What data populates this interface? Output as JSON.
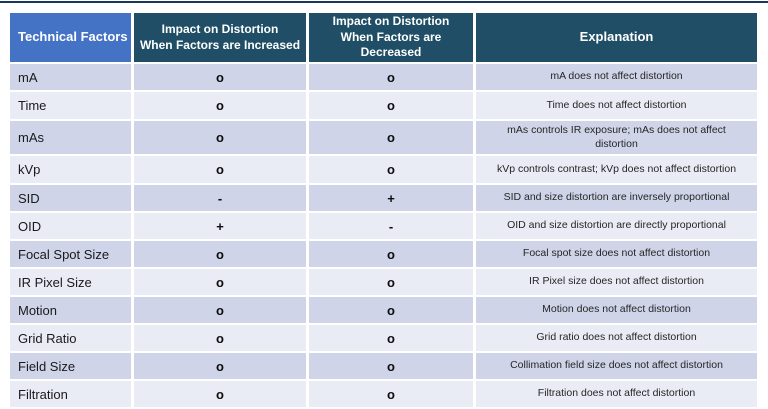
{
  "colors": {
    "header_factor_bg": "#4472c4",
    "header_dark_bg": "#1f4e66",
    "band_dark": "#cfd4e8",
    "band_light": "#e9ebf5",
    "top_rule": "#17375d",
    "header_text": "#ffffff",
    "body_text": "#1f1f1f"
  },
  "table": {
    "headers": {
      "factor": "Technical Factors",
      "increased_line1": "Impact on Distortion",
      "increased_line2": "When Factors are Increased",
      "decreased_line1": "Impact on Distortion",
      "decreased_line2": "When Factors are Decreased",
      "explanation": "Explanation"
    },
    "rows": [
      {
        "factor": "mA",
        "increased": "o",
        "decreased": "o",
        "explanation": "mA does not affect distortion"
      },
      {
        "factor": "Time",
        "increased": "o",
        "decreased": "o",
        "explanation": "Time does not affect distortion"
      },
      {
        "factor": "mAs",
        "increased": "o",
        "decreased": "o",
        "explanation": "mAs controls IR exposure; mAs does not affect distortion"
      },
      {
        "factor": "kVp",
        "increased": "o",
        "decreased": "o",
        "explanation": "kVp controls contrast; kVp does not affect distortion"
      },
      {
        "factor": "SID",
        "increased": "-",
        "decreased": "+",
        "explanation": "SID and size distortion are inversely proportional"
      },
      {
        "factor": "OID",
        "increased": "+",
        "decreased": "-",
        "explanation": "OID and size distortion are directly proportional"
      },
      {
        "factor": "Focal Spot Size",
        "increased": "o",
        "decreased": "o",
        "explanation": "Focal spot size does not affect distortion"
      },
      {
        "factor": "IR Pixel Size",
        "increased": "o",
        "decreased": "o",
        "explanation": "IR Pixel size does not affect distortion"
      },
      {
        "factor": "Motion",
        "increased": "o",
        "decreased": "o",
        "explanation": "Motion does not affect distortion"
      },
      {
        "factor": "Grid Ratio",
        "increased": "o",
        "decreased": "o",
        "explanation": "Grid ratio does not affect distortion"
      },
      {
        "factor": "Field Size",
        "increased": "o",
        "decreased": "o",
        "explanation": "Collimation field size does not affect distortion"
      },
      {
        "factor": "Filtration",
        "increased": "o",
        "decreased": "o",
        "explanation": "Filtration does not affect distortion"
      }
    ]
  }
}
